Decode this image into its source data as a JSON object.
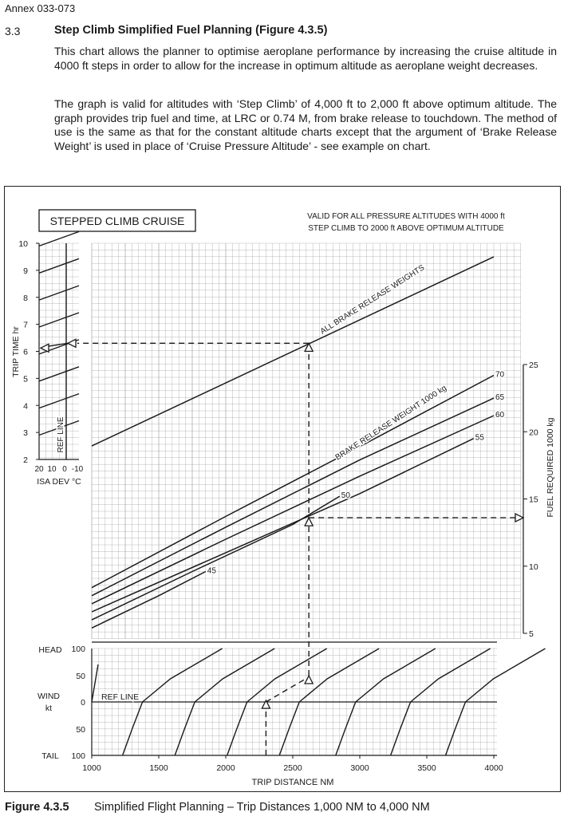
{
  "annex": "Annex 033-073",
  "section": {
    "number": "3.3",
    "title": "Step Climb Simplified Fuel Planning (Figure 4.3.5)",
    "paragraphs": [
      "This chart allows the planner to optimise aeroplane performance by increasing the cruise altitude in 4000 ft steps in order to allow for the increase in optimum altitude as aeroplane weight decreases.",
      "The graph is valid for altitudes with ‘Step Climb’ of 4,000 ft to 2,000 ft above optimum altitude. The graph provides trip fuel and time, at LRC or 0.74 M, from brake release to touchdown. The method of use is the same as that for the constant altitude charts except that the argument of ‘Brake Release Weight’ is used in place of ‘Cruise Pressure Altitude’ - see example on chart."
    ]
  },
  "caption": {
    "label": "Figure 4.3.5",
    "text": "Simplified Flight Planning – Trip Distances 1,000 NM to 4,000 NM"
  },
  "chart_data": {
    "type": "line",
    "title": "STEPPED CLIMB CRUISE",
    "note_lines": [
      "VALID FOR ALL PRESSURE ALTITUDES WITH 4000 ft",
      "STEP CLIMB TO 2000 ft ABOVE OPTIMUM ALTITUDE"
    ],
    "xlabel": "TRIP DISTANCE  NM",
    "x_ticks": [
      1000,
      1500,
      2000,
      2500,
      3000,
      3500,
      4000
    ],
    "xlim": [
      1000,
      4000
    ],
    "time_axis": {
      "label": "TRIP TIME  hr",
      "ticks": [
        2,
        3,
        4,
        5,
        6,
        7,
        8,
        9,
        10
      ],
      "range": [
        2,
        10
      ]
    },
    "fuel_axis": {
      "label": "FUEL REQUIRED  1000 kg",
      "ticks": [
        5,
        10,
        15,
        20,
        25
      ],
      "range": [
        5,
        25
      ]
    },
    "isa_dev": {
      "label": "ISA DEV °C",
      "ticks": [
        "20",
        "10",
        "0",
        "-10"
      ],
      "ref_label": "REF LINE"
    },
    "wind": {
      "label": "WIND",
      "unit": "kt",
      "head_label": "HEAD",
      "tail_label": "TAIL",
      "ticks": [
        "100",
        "50",
        "0",
        "50",
        "100"
      ],
      "ref_label": "REF LINE"
    },
    "time_line": {
      "label": "ALL BRAKE RELEASE WEIGHTS",
      "x": [
        1000,
        4000
      ],
      "y": [
        2.5,
        9.5
      ]
    },
    "weight_curves_label": "BRAKE RELEASE WEIGHT  1000 kg",
    "weight_curves": [
      {
        "name": "70",
        "x": [
          1000,
          2000,
          3000,
          4000
        ],
        "y": [
          8.4,
          13.7,
          18.9,
          24.2
        ]
      },
      {
        "name": "65",
        "x": [
          1000,
          2000,
          3000,
          4000
        ],
        "y": [
          7.8,
          12.9,
          17.9,
          22.5
        ]
      },
      {
        "name": "60",
        "x": [
          1000,
          2000,
          3000,
          4000
        ],
        "y": [
          7.2,
          12.0,
          16.7,
          21.2
        ]
      },
      {
        "name": "55",
        "x": [
          1000,
          2000,
          3000,
          3850
        ],
        "y": [
          6.6,
          11.0,
          15.4,
          19.5
        ]
      },
      {
        "name": "50",
        "x": [
          1000,
          1750,
          2500,
          2850
        ],
        "y": [
          6.0,
          9.6,
          13.1,
          15.2
        ]
      },
      {
        "name": "45",
        "x": [
          1000,
          1500,
          1850
        ],
        "y": [
          5.4,
          7.8,
          9.6
        ]
      }
    ],
    "example": {
      "ground_distance_nm": 2300,
      "air_distance_nm": 2620,
      "trip_time_hr": 6.3,
      "trip_fuel_1000kg": 13.6
    },
    "grid": true,
    "style": {
      "line_color": "#1a1a1a",
      "grid_color": "#8a8a8a",
      "paper_color": "#ffffff"
    }
  }
}
